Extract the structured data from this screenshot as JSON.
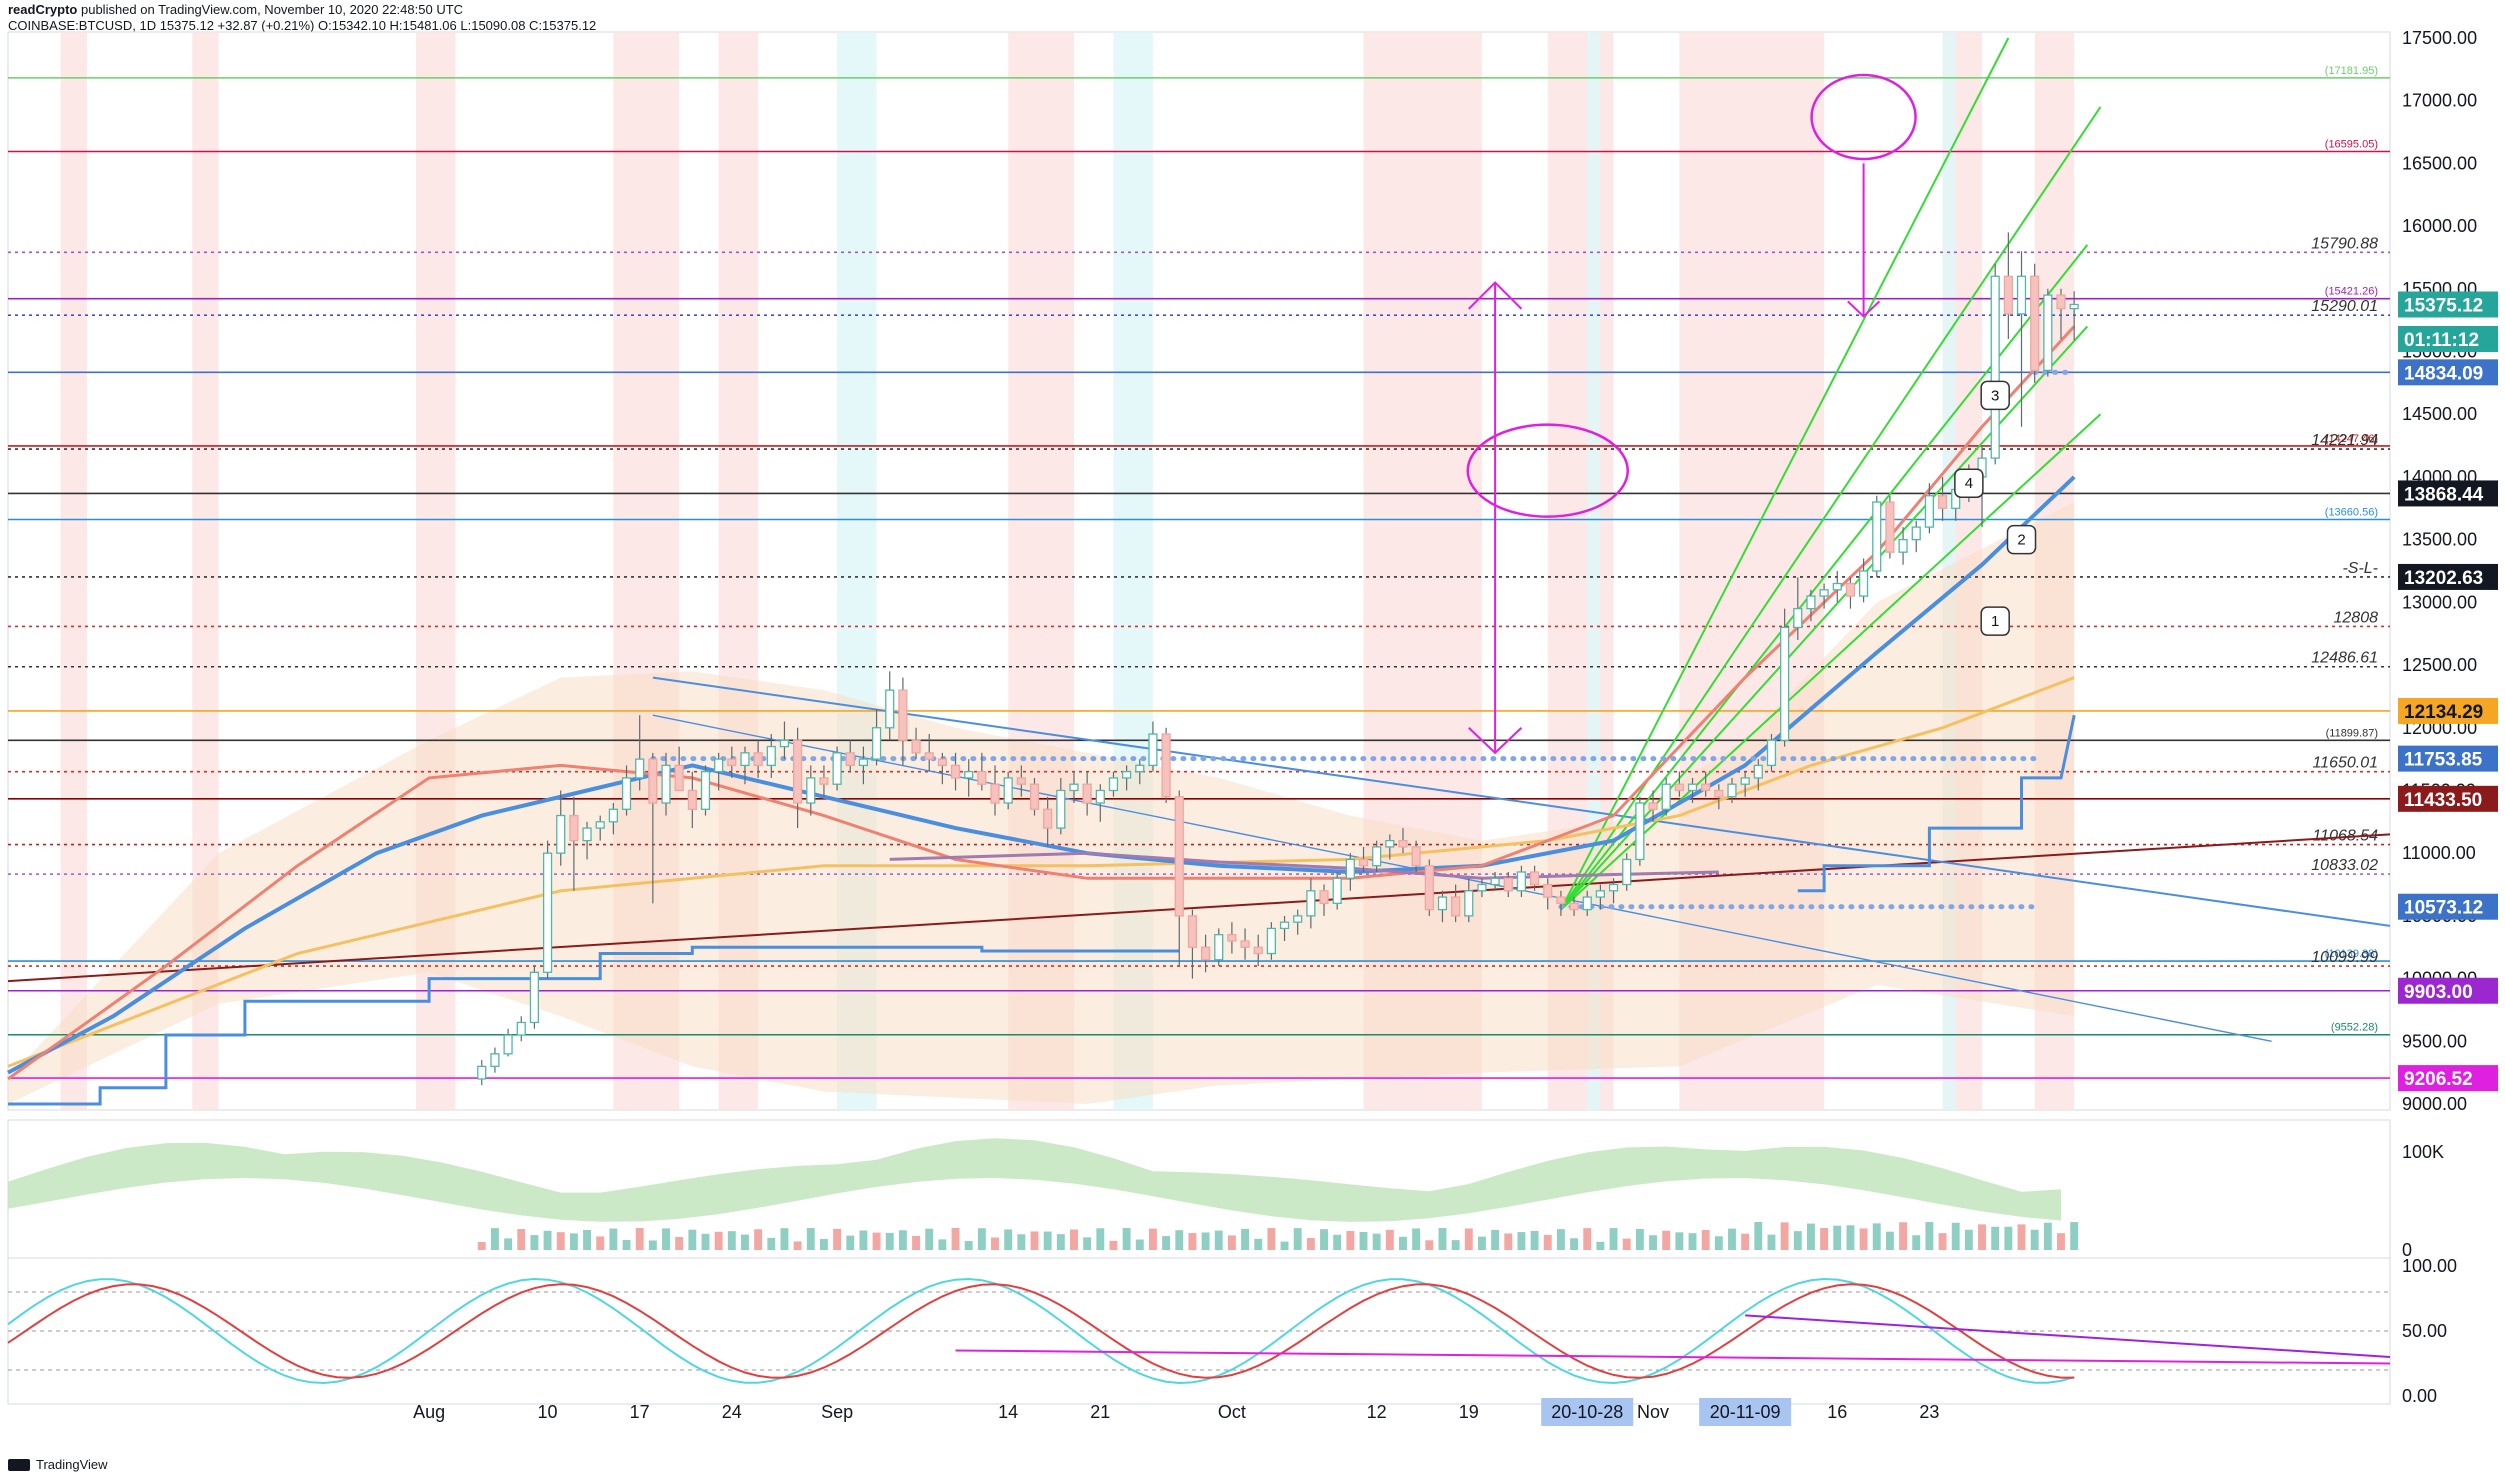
{
  "header": {
    "author": "readCrypto",
    "published": "published on TradingView.com, November 10, 2020 22:48:50 UTC",
    "ohlc": "COINBASE:BTCUSD, 1D  15375.12  +32.87 (+0.21%)  O:15342.10  H:15481.06  L:15090.08  C:15375.12"
  },
  "footer": {
    "brand": "TradingView"
  },
  "colors": {
    "bull": "#4fb8a8",
    "bear": "#f0a6a0",
    "magenta": "#e020e0",
    "green_fan": "#33dd33",
    "blue_line": "#4a8ee0",
    "orange_ma": "#f5c060",
    "maroon_trend": "#8b1a1a"
  },
  "chart_data": [
    {
      "type": "candlestick",
      "title": "COINBASE:BTCUSD, 1D",
      "ylim": [
        9000,
        17500
      ],
      "y_ticks": [
        "17500.00",
        "17000.00",
        "16500.00",
        "16000.00",
        "15500.00",
        "15000.00",
        "14500.00",
        "14000.00",
        "13500.00",
        "13000.00",
        "12500.00",
        "12000.00",
        "11500.00",
        "11000.00",
        "10500.00",
        "10000.00",
        "9500.00",
        "9000.00"
      ],
      "x_ticks": [
        "Aug",
        "10",
        "17",
        "24",
        "Sep",
        "14",
        "21",
        "Oct",
        "12",
        "19",
        "Nov",
        "16",
        "23"
      ],
      "x_highlight_labels": [
        "20-10-28",
        "20-11-09"
      ],
      "x_range_days": [
        -32,
        149
      ],
      "candles_ohlc": [
        [
          9200,
          9350,
          9150,
          9300
        ],
        [
          9300,
          9450,
          9250,
          9400
        ],
        [
          9400,
          9600,
          9380,
          9550
        ],
        [
          9550,
          9700,
          9500,
          9650
        ],
        [
          9650,
          10100,
          9600,
          10050
        ],
        [
          10050,
          11100,
          10000,
          11000
        ],
        [
          11000,
          11500,
          10900,
          11300
        ],
        [
          11300,
          11450,
          10700,
          11100
        ],
        [
          11100,
          11250,
          10950,
          11200
        ],
        [
          11200,
          11300,
          11100,
          11250
        ],
        [
          11250,
          11400,
          11150,
          11350
        ],
        [
          11350,
          11700,
          11300,
          11600
        ],
        [
          11600,
          12100,
          11500,
          11750
        ],
        [
          11750,
          11800,
          10600,
          11400
        ],
        [
          11400,
          11800,
          11300,
          11700
        ],
        [
          11700,
          11850,
          11500,
          11500
        ],
        [
          11500,
          11650,
          11200,
          11350
        ],
        [
          11350,
          11700,
          11300,
          11650
        ],
        [
          11650,
          11800,
          11500,
          11750
        ],
        [
          11750,
          11850,
          11600,
          11700
        ],
        [
          11700,
          11850,
          11550,
          11800
        ],
        [
          11800,
          11900,
          11600,
          11700
        ],
        [
          11700,
          11950,
          11600,
          11850
        ],
        [
          11850,
          12050,
          11750,
          11900
        ],
        [
          11900,
          12000,
          11200,
          11400
        ],
        [
          11400,
          11700,
          11300,
          11600
        ],
        [
          11600,
          11700,
          11450,
          11550
        ],
        [
          11550,
          11850,
          11500,
          11800
        ],
        [
          11800,
          11900,
          11650,
          11700
        ],
        [
          11700,
          11850,
          11550,
          11750
        ],
        [
          11750,
          12150,
          11700,
          12000
        ],
        [
          12000,
          12450,
          11900,
          12300
        ],
        [
          12300,
          12400,
          11700,
          11900
        ],
        [
          11900,
          12000,
          11750,
          11800
        ],
        [
          11800,
          11950,
          11650,
          11750
        ],
        [
          11750,
          11800,
          11550,
          11700
        ],
        [
          11700,
          11800,
          11500,
          11600
        ],
        [
          11600,
          11750,
          11450,
          11650
        ],
        [
          11650,
          11800,
          11500,
          11550
        ],
        [
          11550,
          11700,
          11300,
          11400
        ],
        [
          11400,
          11650,
          11350,
          11600
        ],
        [
          11600,
          11700,
          11450,
          11550
        ],
        [
          11550,
          11600,
          11300,
          11350
        ],
        [
          11350,
          11450,
          11050,
          11200
        ],
        [
          11200,
          11600,
          11150,
          11500
        ],
        [
          11500,
          11650,
          11400,
          11550
        ],
        [
          11550,
          11650,
          11300,
          11400
        ],
        [
          11400,
          11550,
          11250,
          11500
        ],
        [
          11500,
          11650,
          11450,
          11600
        ],
        [
          11600,
          11700,
          11500,
          11650
        ],
        [
          11650,
          11750,
          11550,
          11700
        ],
        [
          11700,
          12050,
          11650,
          11950
        ],
        [
          11950,
          12000,
          11400,
          11450
        ],
        [
          11450,
          11500,
          10100,
          10500
        ],
        [
          10500,
          10550,
          10000,
          10250
        ],
        [
          10250,
          10350,
          10050,
          10150
        ],
        [
          10150,
          10400,
          10100,
          10350
        ],
        [
          10350,
          10450,
          10200,
          10300
        ],
        [
          10300,
          10400,
          10150,
          10250
        ],
        [
          10250,
          10350,
          10100,
          10200
        ],
        [
          10200,
          10450,
          10150,
          10400
        ],
        [
          10400,
          10500,
          10300,
          10450
        ],
        [
          10450,
          10550,
          10350,
          10500
        ],
        [
          10500,
          10800,
          10400,
          10700
        ],
        [
          10700,
          10750,
          10500,
          10600
        ],
        [
          10600,
          10850,
          10550,
          10800
        ],
        [
          10800,
          11000,
          10700,
          10950
        ],
        [
          10950,
          11050,
          10850,
          10900
        ],
        [
          10900,
          11100,
          10850,
          11050
        ],
        [
          11050,
          11150,
          10950,
          11100
        ],
        [
          11100,
          11200,
          11000,
          11050
        ],
        [
          11050,
          11100,
          10850,
          10900
        ],
        [
          10900,
          10950,
          10500,
          10550
        ],
        [
          10550,
          10700,
          10450,
          10650
        ],
        [
          10650,
          10750,
          10450,
          10500
        ],
        [
          10500,
          10800,
          10450,
          10700
        ],
        [
          10700,
          10800,
          10650,
          10750
        ],
        [
          10750,
          10850,
          10700,
          10800
        ],
        [
          10800,
          10850,
          10650,
          10700
        ],
        [
          10700,
          10900,
          10650,
          10850
        ],
        [
          10850,
          10900,
          10700,
          10750
        ],
        [
          10750,
          10800,
          10550,
          10650
        ],
        [
          10650,
          10700,
          10500,
          10600
        ],
        [
          10600,
          10650,
          10500,
          10550
        ],
        [
          10550,
          10700,
          10500,
          10650
        ],
        [
          10650,
          10750,
          10550,
          10700
        ],
        [
          10700,
          10800,
          10600,
          10750
        ],
        [
          10750,
          11000,
          10700,
          10950
        ],
        [
          10950,
          11450,
          10900,
          11400
        ],
        [
          11400,
          11500,
          11250,
          11350
        ],
        [
          11350,
          11600,
          11300,
          11550
        ],
        [
          11550,
          11650,
          11450,
          11500
        ],
        [
          11500,
          11600,
          11400,
          11550
        ],
        [
          11550,
          11650,
          11450,
          11500
        ],
        [
          11500,
          11550,
          11350,
          11450
        ],
        [
          11450,
          11600,
          11400,
          11550
        ],
        [
          11550,
          11650,
          11450,
          11600
        ],
        [
          11600,
          11750,
          11500,
          11700
        ],
        [
          11700,
          11950,
          11650,
          11900
        ],
        [
          11900,
          12950,
          11850,
          12800
        ],
        [
          12800,
          13200,
          12700,
          12950
        ],
        [
          12950,
          13100,
          12850,
          13050
        ],
        [
          13050,
          13150,
          12950,
          13100
        ],
        [
          13100,
          13250,
          13000,
          13150
        ],
        [
          13150,
          13200,
          12950,
          13050
        ],
        [
          13050,
          13350,
          13000,
          13250
        ],
        [
          13250,
          13850,
          13200,
          13800
        ],
        [
          13800,
          13850,
          13350,
          13400
        ],
        [
          13400,
          13600,
          13300,
          13500
        ],
        [
          13500,
          13650,
          13400,
          13600
        ],
        [
          13600,
          13950,
          13550,
          13850
        ],
        [
          13850,
          14000,
          13650,
          13750
        ],
        [
          13750,
          13950,
          13650,
          13900
        ],
        [
          13900,
          14100,
          13800,
          14000
        ],
        [
          14000,
          14250,
          13600,
          14150
        ],
        [
          14150,
          15700,
          14100,
          15600
        ],
        [
          15600,
          15950,
          15100,
          15300
        ],
        [
          15300,
          15800,
          14400,
          15600
        ],
        [
          15600,
          15700,
          14750,
          14850
        ],
        [
          14850,
          15500,
          14800,
          15450
        ],
        [
          15450,
          15500,
          15100,
          15342
        ],
        [
          15342,
          15481,
          15090,
          15375
        ]
      ],
      "levels": [
        {
          "value": 17181.95,
          "label": "(17181.95)",
          "color": "#6ccf6c"
        },
        {
          "value": 16595.05,
          "label": "(16595.05)",
          "color": "#d0104c"
        },
        {
          "value": 15790.88,
          "label": "15790.88",
          "color": "#9e57c9"
        },
        {
          "value": 15421.26,
          "label": "(15421.26)",
          "color": "#a020c0"
        },
        {
          "value": 15290.01,
          "label": "15290.01",
          "color": "#3d4ed8"
        },
        {
          "value": 14834.09,
          "label": "",
          "color": "#3d72c9"
        },
        {
          "value": 14247.46,
          "label": "(14247.46)",
          "color": "#c02020"
        },
        {
          "value": 14221.94,
          "label": "14221.94",
          "color": "#333333"
        },
        {
          "value": 13868.44,
          "label": "",
          "color": "#333333"
        },
        {
          "value": 13660.56,
          "label": "(13660.56)",
          "color": "#2a8ee0"
        },
        {
          "value": 13202.63,
          "label": "-S-L-",
          "color": "#333333"
        },
        {
          "value": 12808,
          "label": "12808",
          "color": "#d03030"
        },
        {
          "value": 12486.61,
          "label": "12486.61",
          "color": "#333333"
        },
        {
          "value": 12134.29,
          "label": "",
          "color": "#f5a623"
        },
        {
          "value": 11899.87,
          "label": "(11899.87)",
          "color": "#333333"
        },
        {
          "value": 11650.01,
          "label": "11650.01",
          "color": "#d03030"
        },
        {
          "value": 11433.5,
          "label": "",
          "color": "#8b0000"
        },
        {
          "value": 11068.54,
          "label": "11068.54",
          "color": "#c02020"
        },
        {
          "value": 10833.02,
          "label": "10833.02",
          "color": "#9e57c9"
        },
        {
          "value": 10139.38,
          "label": "(10139.38)",
          "color": "#2a8ee0"
        },
        {
          "value": 10099.99,
          "label": "10099.99",
          "color": "#d03030"
        },
        {
          "value": 9903.0,
          "label": "",
          "color": "#a020e0"
        },
        {
          "value": 9552.28,
          "label": "(9552.28)",
          "color": "#1a8a6a"
        },
        {
          "value": 9206.52,
          "label": "",
          "color": "#e020e0"
        }
      ],
      "price_badges": [
        {
          "value": 15375.12,
          "text": "15375.12",
          "bg": "#26a69a",
          "fg": "#ffffff"
        },
        {
          "value": 15100,
          "text": "01:11:12",
          "bg": "#26a69a",
          "fg": "#ffffff"
        },
        {
          "value": 14834.09,
          "text": "14834.09",
          "bg": "#3d72c9",
          "fg": "#ffffff"
        },
        {
          "value": 13868.44,
          "text": "13868.44",
          "bg": "#131722",
          "fg": "#ffffff"
        },
        {
          "value": 13202.63,
          "text": "13202.63",
          "bg": "#131722",
          "fg": "#ffffff"
        },
        {
          "value": 12134.29,
          "text": "12134.29",
          "bg": "#f5a623",
          "fg": "#131722"
        },
        {
          "value": 11753.85,
          "text": "11753.85",
          "bg": "#3d72c9",
          "fg": "#ffffff"
        },
        {
          "value": 11433.5,
          "text": "11433.50",
          "bg": "#8b1a1a",
          "fg": "#ffffff"
        },
        {
          "value": 10573.12,
          "text": "10573.12",
          "bg": "#3d72c9",
          "fg": "#ffffff"
        },
        {
          "value": 9903.0,
          "text": "9903.00",
          "bg": "#9c27d0",
          "fg": "#ffffff"
        },
        {
          "value": 9206.52,
          "text": "9206.52",
          "bg": "#e020e0",
          "fg": "#ffffff"
        }
      ],
      "annotations": [
        "1",
        "2",
        "3",
        "4"
      ]
    },
    {
      "type": "area",
      "title": "Volume",
      "y_ticks": [
        "100K",
        "0"
      ]
    },
    {
      "type": "line",
      "title": "Stochastic RSI",
      "ylim": [
        0,
        100
      ],
      "y_ticks": [
        "100.00",
        "50.00",
        "0.00"
      ]
    }
  ]
}
